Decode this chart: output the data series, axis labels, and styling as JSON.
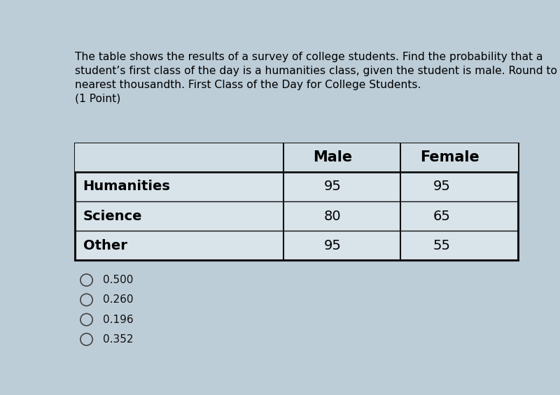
{
  "title_text": "The table shows the results of a survey of college students. Find the probability that a\nstudent’s first class of the day is a humanities class, given the student is male. Round to\nnearest thousandth. First Class of the Day for College Students.\n(1 Point)",
  "col_headers": [
    "",
    "Male",
    "Female"
  ],
  "rows": [
    [
      "Humanities",
      "95",
      "95"
    ],
    [
      "Science",
      "80",
      "65"
    ],
    [
      "Other",
      "95",
      "55"
    ]
  ],
  "options": [
    "0.500",
    "0.260",
    "0.196",
    "0.352"
  ],
  "bg_color": "#bccdd8",
  "table_bg": "#d0dde5",
  "cell_bg": "#d8e3ea",
  "border_color": "#111111",
  "title_fontsize": 11.2,
  "table_header_fontsize": 15,
  "table_cell_fontsize": 14,
  "option_fontsize": 11
}
